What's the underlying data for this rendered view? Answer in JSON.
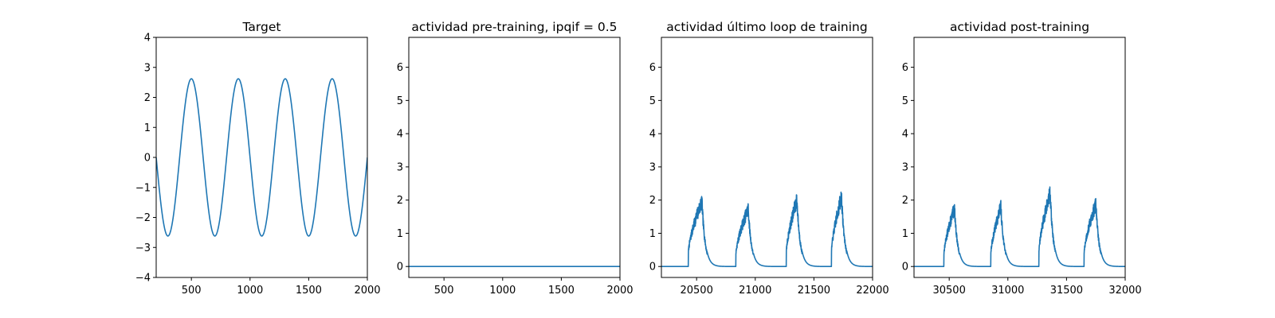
{
  "figure": {
    "background": "#ffffff",
    "line_color": "#1f77b4"
  },
  "chart_data": [
    {
      "type": "line",
      "title": "Target",
      "xlabel": "",
      "ylabel": "",
      "xlim": [
        200,
        2000
      ],
      "ylim": [
        -4,
        4
      ],
      "xticks": [
        500,
        1000,
        1500,
        2000
      ],
      "xtick_labels": [
        "500",
        "1000",
        "1500",
        "2000"
      ],
      "yticks": [
        -4,
        -3,
        -2,
        -1,
        0,
        1,
        2,
        3,
        4
      ],
      "ytick_labels": [
        "−4",
        "−3",
        "−2",
        "−1",
        "0",
        "1",
        "2",
        "3",
        "4"
      ],
      "grid": false,
      "series": [
        {
          "style": "sinusoid",
          "x_start": 200,
          "x_end": 2000,
          "amplitude": 2.62,
          "period": 400,
          "peak_x": 500,
          "offset": 0
        }
      ]
    },
    {
      "type": "line",
      "title": "actividad pre-training, ipqif = 0.5",
      "xlabel": "",
      "ylabel": "",
      "xlim": [
        200,
        2000
      ],
      "ylim": [
        -0.33,
        6.9
      ],
      "xticks": [
        500,
        1000,
        1500,
        2000
      ],
      "xtick_labels": [
        "500",
        "1000",
        "1500",
        "2000"
      ],
      "yticks": [
        0,
        1,
        2,
        3,
        4,
        5,
        6
      ],
      "ytick_labels": [
        "0",
        "1",
        "2",
        "3",
        "4",
        "5",
        "6"
      ],
      "grid": false,
      "series": [
        {
          "style": "points",
          "x": [
            200,
            2000
          ],
          "y": [
            0,
            0
          ]
        }
      ]
    },
    {
      "type": "line",
      "title": "actividad último loop de training",
      "xlabel": "",
      "ylabel": "",
      "xlim": [
        20200,
        22000
      ],
      "ylim": [
        -0.33,
        6.9
      ],
      "xticks": [
        20500,
        21000,
        21500,
        22000
      ],
      "xtick_labels": [
        "20500",
        "21000",
        "21500",
        "22000"
      ],
      "yticks": [
        0,
        1,
        2,
        3,
        4,
        5,
        6
      ],
      "ytick_labels": [
        "0",
        "1",
        "2",
        "3",
        "4",
        "5",
        "6"
      ],
      "grid": false,
      "series": [
        {
          "style": "bursts",
          "x_start": 20200,
          "x_end": 22000,
          "seed": 7,
          "bursts": [
            {
              "start": 20430,
              "peak_x": 20545,
              "peak": 2.2,
              "decay": 28
            },
            {
              "start": 20835,
              "peak_x": 20940,
              "peak": 1.95,
              "decay": 28
            },
            {
              "start": 21265,
              "peak_x": 21355,
              "peak": 2.25,
              "decay": 28
            },
            {
              "start": 21650,
              "peak_x": 21735,
              "peak": 2.35,
              "decay": 28
            }
          ]
        }
      ]
    },
    {
      "type": "line",
      "title": "actividad post-training",
      "xlabel": "",
      "ylabel": "",
      "xlim": [
        30200,
        32000
      ],
      "ylim": [
        -0.33,
        6.9
      ],
      "xticks": [
        30500,
        31000,
        31500,
        32000
      ],
      "xtick_labels": [
        "30500",
        "31000",
        "31500",
        "32000"
      ],
      "yticks": [
        0,
        1,
        2,
        3,
        4,
        5,
        6
      ],
      "ytick_labels": [
        "0",
        "1",
        "2",
        "3",
        "4",
        "5",
        "6"
      ],
      "grid": false,
      "series": [
        {
          "style": "bursts",
          "x_start": 30200,
          "x_end": 32000,
          "seed": 13,
          "bursts": [
            {
              "start": 30455,
              "peak_x": 30545,
              "peak": 1.95,
              "decay": 28
            },
            {
              "start": 30855,
              "peak_x": 30940,
              "peak": 2.0,
              "decay": 28
            },
            {
              "start": 31265,
              "peak_x": 31360,
              "peak": 2.45,
              "decay": 28
            },
            {
              "start": 31650,
              "peak_x": 31750,
              "peak": 2.1,
              "decay": 28
            }
          ]
        }
      ]
    }
  ]
}
